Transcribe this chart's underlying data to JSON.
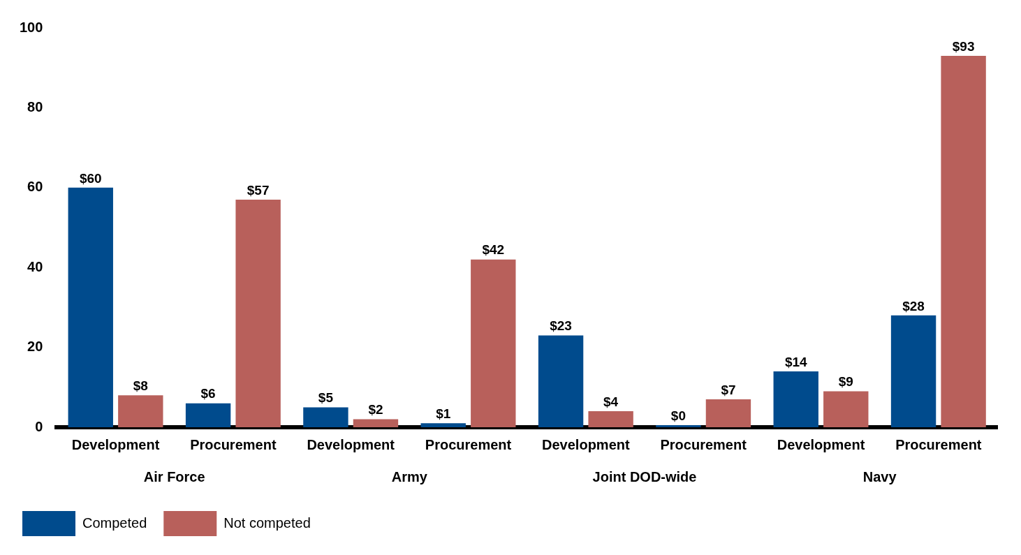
{
  "chart_data": {
    "type": "bar",
    "categories": [
      "Development",
      "Procurement",
      "Development",
      "Procurement",
      "Development",
      "Procurement",
      "Development",
      "Procurement"
    ],
    "annotations": [
      "Air Force",
      "Army",
      "Joint DOD-wide",
      "Navy"
    ],
    "series": [
      {
        "name": "Competed",
        "color": "#004b8d",
        "values": [
          60,
          6,
          5,
          1,
          23,
          0,
          14,
          28
        ],
        "value_labels": [
          "$60",
          "$6",
          "$5",
          "$1",
          "$23",
          "$0",
          "$14",
          "$28"
        ]
      },
      {
        "name": "Not competed",
        "color": "#b8605b",
        "values": [
          8,
          57,
          2,
          42,
          4,
          7,
          9,
          93
        ],
        "value_labels": [
          "$8",
          "$57",
          "$2",
          "$42",
          "$4",
          "$7",
          "$9",
          "$93"
        ]
      }
    ],
    "ylim": [
      0,
      100
    ],
    "yticks": [
      0,
      20,
      40,
      60,
      80,
      100
    ],
    "grid": false,
    "legend": "bottom left"
  }
}
